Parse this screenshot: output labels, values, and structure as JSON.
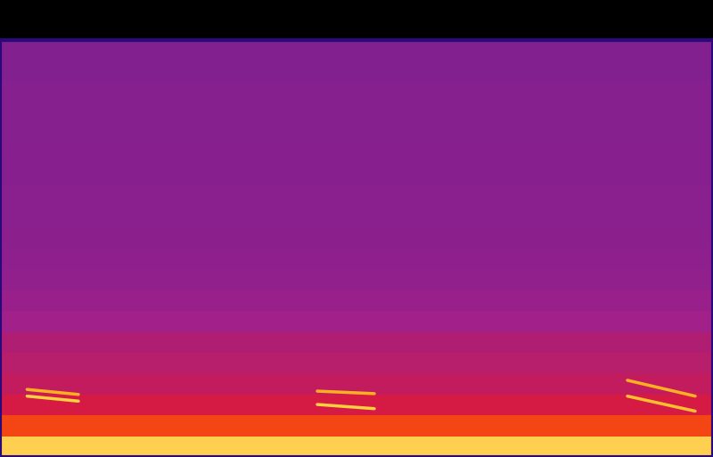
{
  "chart_data": {
    "type": "spectrogram",
    "xlim": [
      0,
      100
    ],
    "ylim": [
      0,
      100
    ],
    "tick_labels": false,
    "grid": false,
    "background": {
      "bands": [
        0,
        5,
        10,
        15,
        20,
        25,
        30,
        35,
        40,
        45,
        50,
        55,
        60,
        65,
        70,
        75,
        80,
        85,
        90,
        95,
        100
      ],
      "intensity": [
        0.95,
        0.78,
        0.66,
        0.6,
        0.57,
        0.55,
        0.5,
        0.47,
        0.44,
        0.42,
        0.41,
        0.4,
        0.4,
        0.39,
        0.39,
        0.38,
        0.38,
        0.38,
        0.37,
        0.37
      ]
    },
    "series": [
      {
        "x": [
          3.8,
          11.0
        ],
        "y": [
          16.2,
          15.0
        ],
        "color": "#ffb020"
      },
      {
        "x": [
          3.8,
          11.0
        ],
        "y": [
          14.6,
          13.4
        ],
        "color": "#ffd040"
      },
      {
        "x": [
          44.5,
          52.5
        ],
        "y": [
          15.8,
          15.2
        ],
        "color": "#ffb020"
      },
      {
        "x": [
          44.5,
          52.5
        ],
        "y": [
          12.6,
          11.6
        ],
        "color": "#ffd040"
      },
      {
        "x": [
          88.0,
          97.5
        ],
        "y": [
          18.4,
          14.6
        ],
        "color": "#ffb020"
      },
      {
        "x": [
          88.0,
          97.5
        ],
        "y": [
          14.6,
          11.0
        ],
        "color": "#ffc030"
      }
    ]
  }
}
